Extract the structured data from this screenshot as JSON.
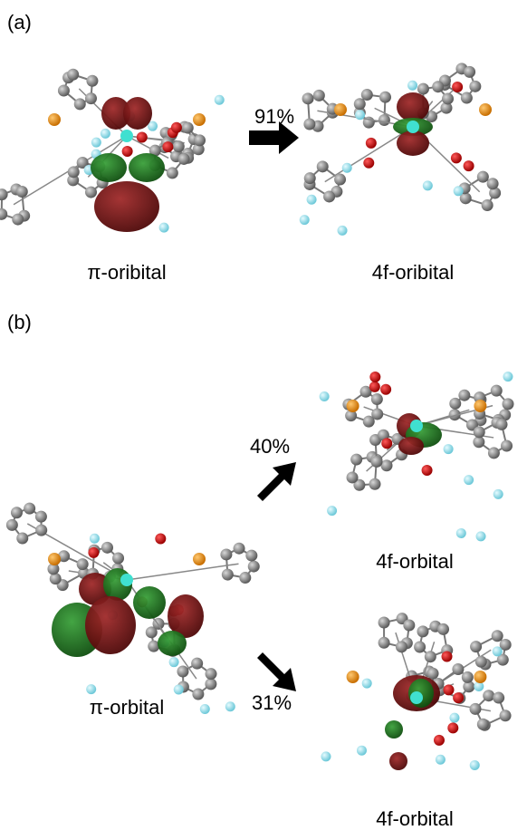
{
  "panel_a": {
    "label": "(a)",
    "percent": "91%",
    "left_caption": "π-oribital",
    "right_caption": "4f-oribital"
  },
  "panel_b": {
    "label": "(b)",
    "left_caption": "π-orbital",
    "upper_percent": "40%",
    "upper_caption": "4f-orbital",
    "lower_percent": "31%",
    "lower_caption": "4f-orbital"
  }
}
